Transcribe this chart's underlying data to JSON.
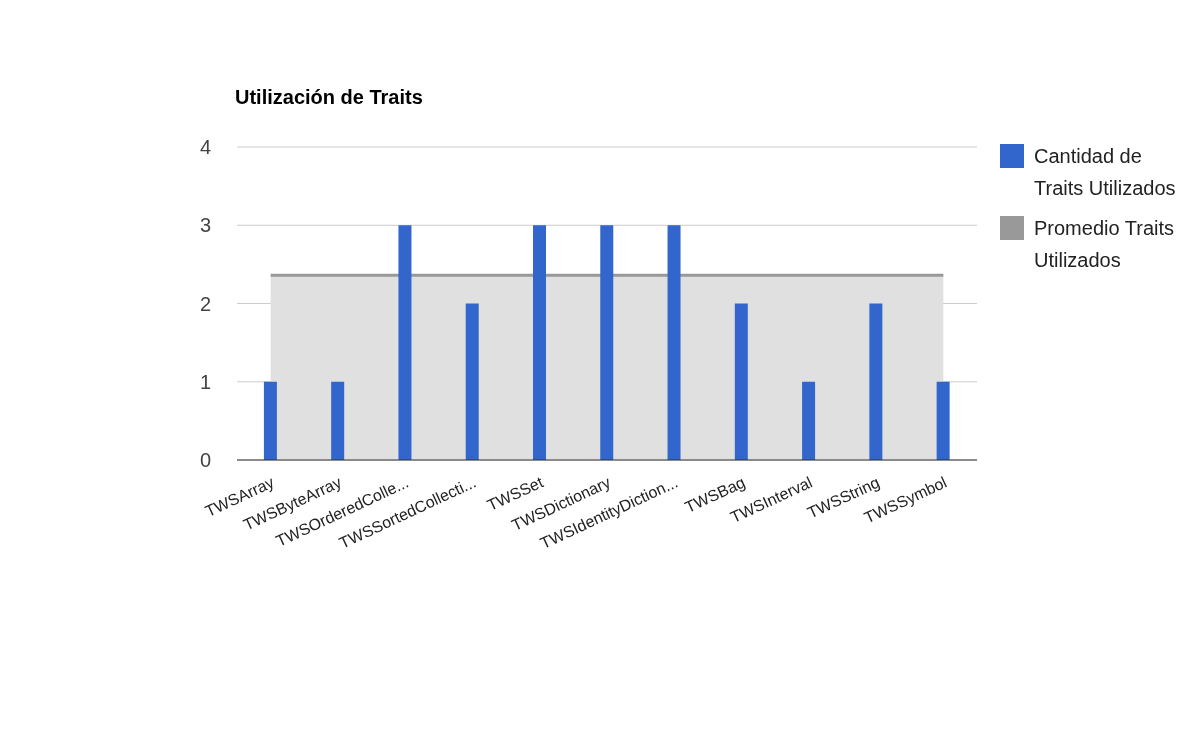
{
  "chart_data": {
    "type": "bar",
    "title": "Utilización de Traits",
    "categories": [
      "TWSArray",
      "TWSByteArray",
      "TWSOrderedColle...",
      "TWSSortedCollecti...",
      "TWSSet",
      "TWSDictionary",
      "TWSIdentityDiction...",
      "TWSBag",
      "TWSInterval",
      "TWSString",
      "TWSSymbol"
    ],
    "series": [
      {
        "name": "Cantidad de Traits Utilizados",
        "color": "#3366cc",
        "values": [
          1,
          1,
          3,
          2,
          3,
          3,
          3,
          2,
          1,
          2,
          1
        ]
      },
      {
        "name": "Promedio Traits Utilizados",
        "type": "area",
        "color": "#999999",
        "values": [
          2.36,
          2.36,
          2.36,
          2.36,
          2.36,
          2.36,
          2.36,
          2.36,
          2.36,
          2.36,
          2.36
        ]
      }
    ],
    "ylim": [
      0,
      4
    ],
    "yticks": [
      0,
      1,
      2,
      3,
      4
    ],
    "grid": "y",
    "legend": "top right"
  }
}
